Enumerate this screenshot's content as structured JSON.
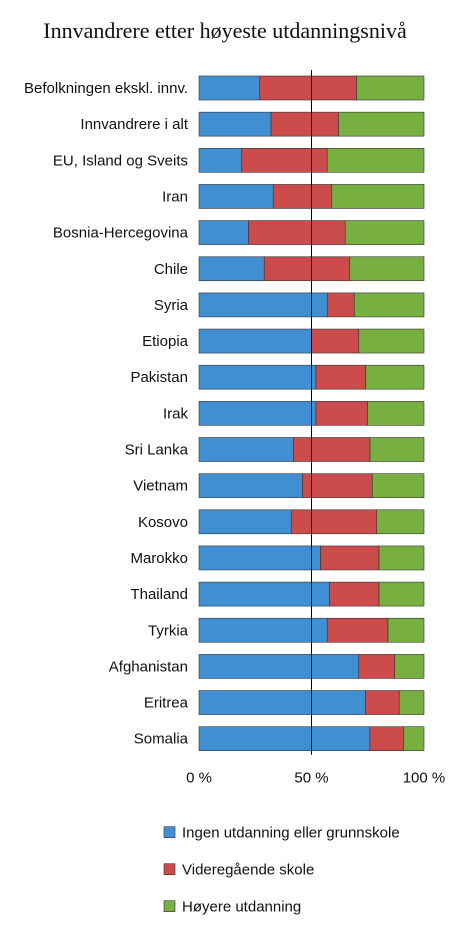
{
  "chart_data": {
    "type": "bar",
    "orientation": "horizontal",
    "stacked": true,
    "title": "Innvandrere etter høyeste utdanningsnivå",
    "xlabel": "",
    "ylabel": "",
    "xlim": [
      0,
      100
    ],
    "x_ticks": [
      0,
      50,
      100
    ],
    "x_tick_labels": [
      "0 %",
      "50 %",
      "100 %"
    ],
    "grid": false,
    "reference_line_at": 50,
    "legend_position": "bottom",
    "categories": [
      "Befolkningen ekskl. innv.",
      "Innvandrere i alt",
      "EU, Island og Sveits",
      "Iran",
      "Bosnia-Hercegovina",
      "Chile",
      "Syria",
      "Etiopia",
      "Pakistan",
      "Irak",
      "Sri Lanka",
      "Vietnam",
      "Kosovo",
      "Marokko",
      "Thailand",
      "Tyrkia",
      "Afghanistan",
      "Eritrea",
      "Somalia"
    ],
    "series": [
      {
        "name": "Ingen utdanning eller grunnskole",
        "color": "#3f8fd2",
        "values": [
          27,
          32,
          19,
          33,
          22,
          29,
          57,
          50,
          52,
          52,
          42,
          46,
          41,
          54,
          58,
          57,
          71,
          74,
          76
        ]
      },
      {
        "name": "Videregående skole",
        "color": "#cc4b4b",
        "values": [
          43,
          30,
          38,
          26,
          43,
          38,
          12,
          21,
          22,
          23,
          34,
          31,
          38,
          26,
          22,
          27,
          16,
          15,
          15
        ]
      },
      {
        "name": "Høyere utdanning",
        "color": "#77b041",
        "values": [
          30,
          38,
          43,
          41,
          35,
          33,
          31,
          29,
          26,
          25,
          24,
          23,
          21,
          20,
          20,
          16,
          13,
          11,
          9
        ]
      }
    ]
  }
}
